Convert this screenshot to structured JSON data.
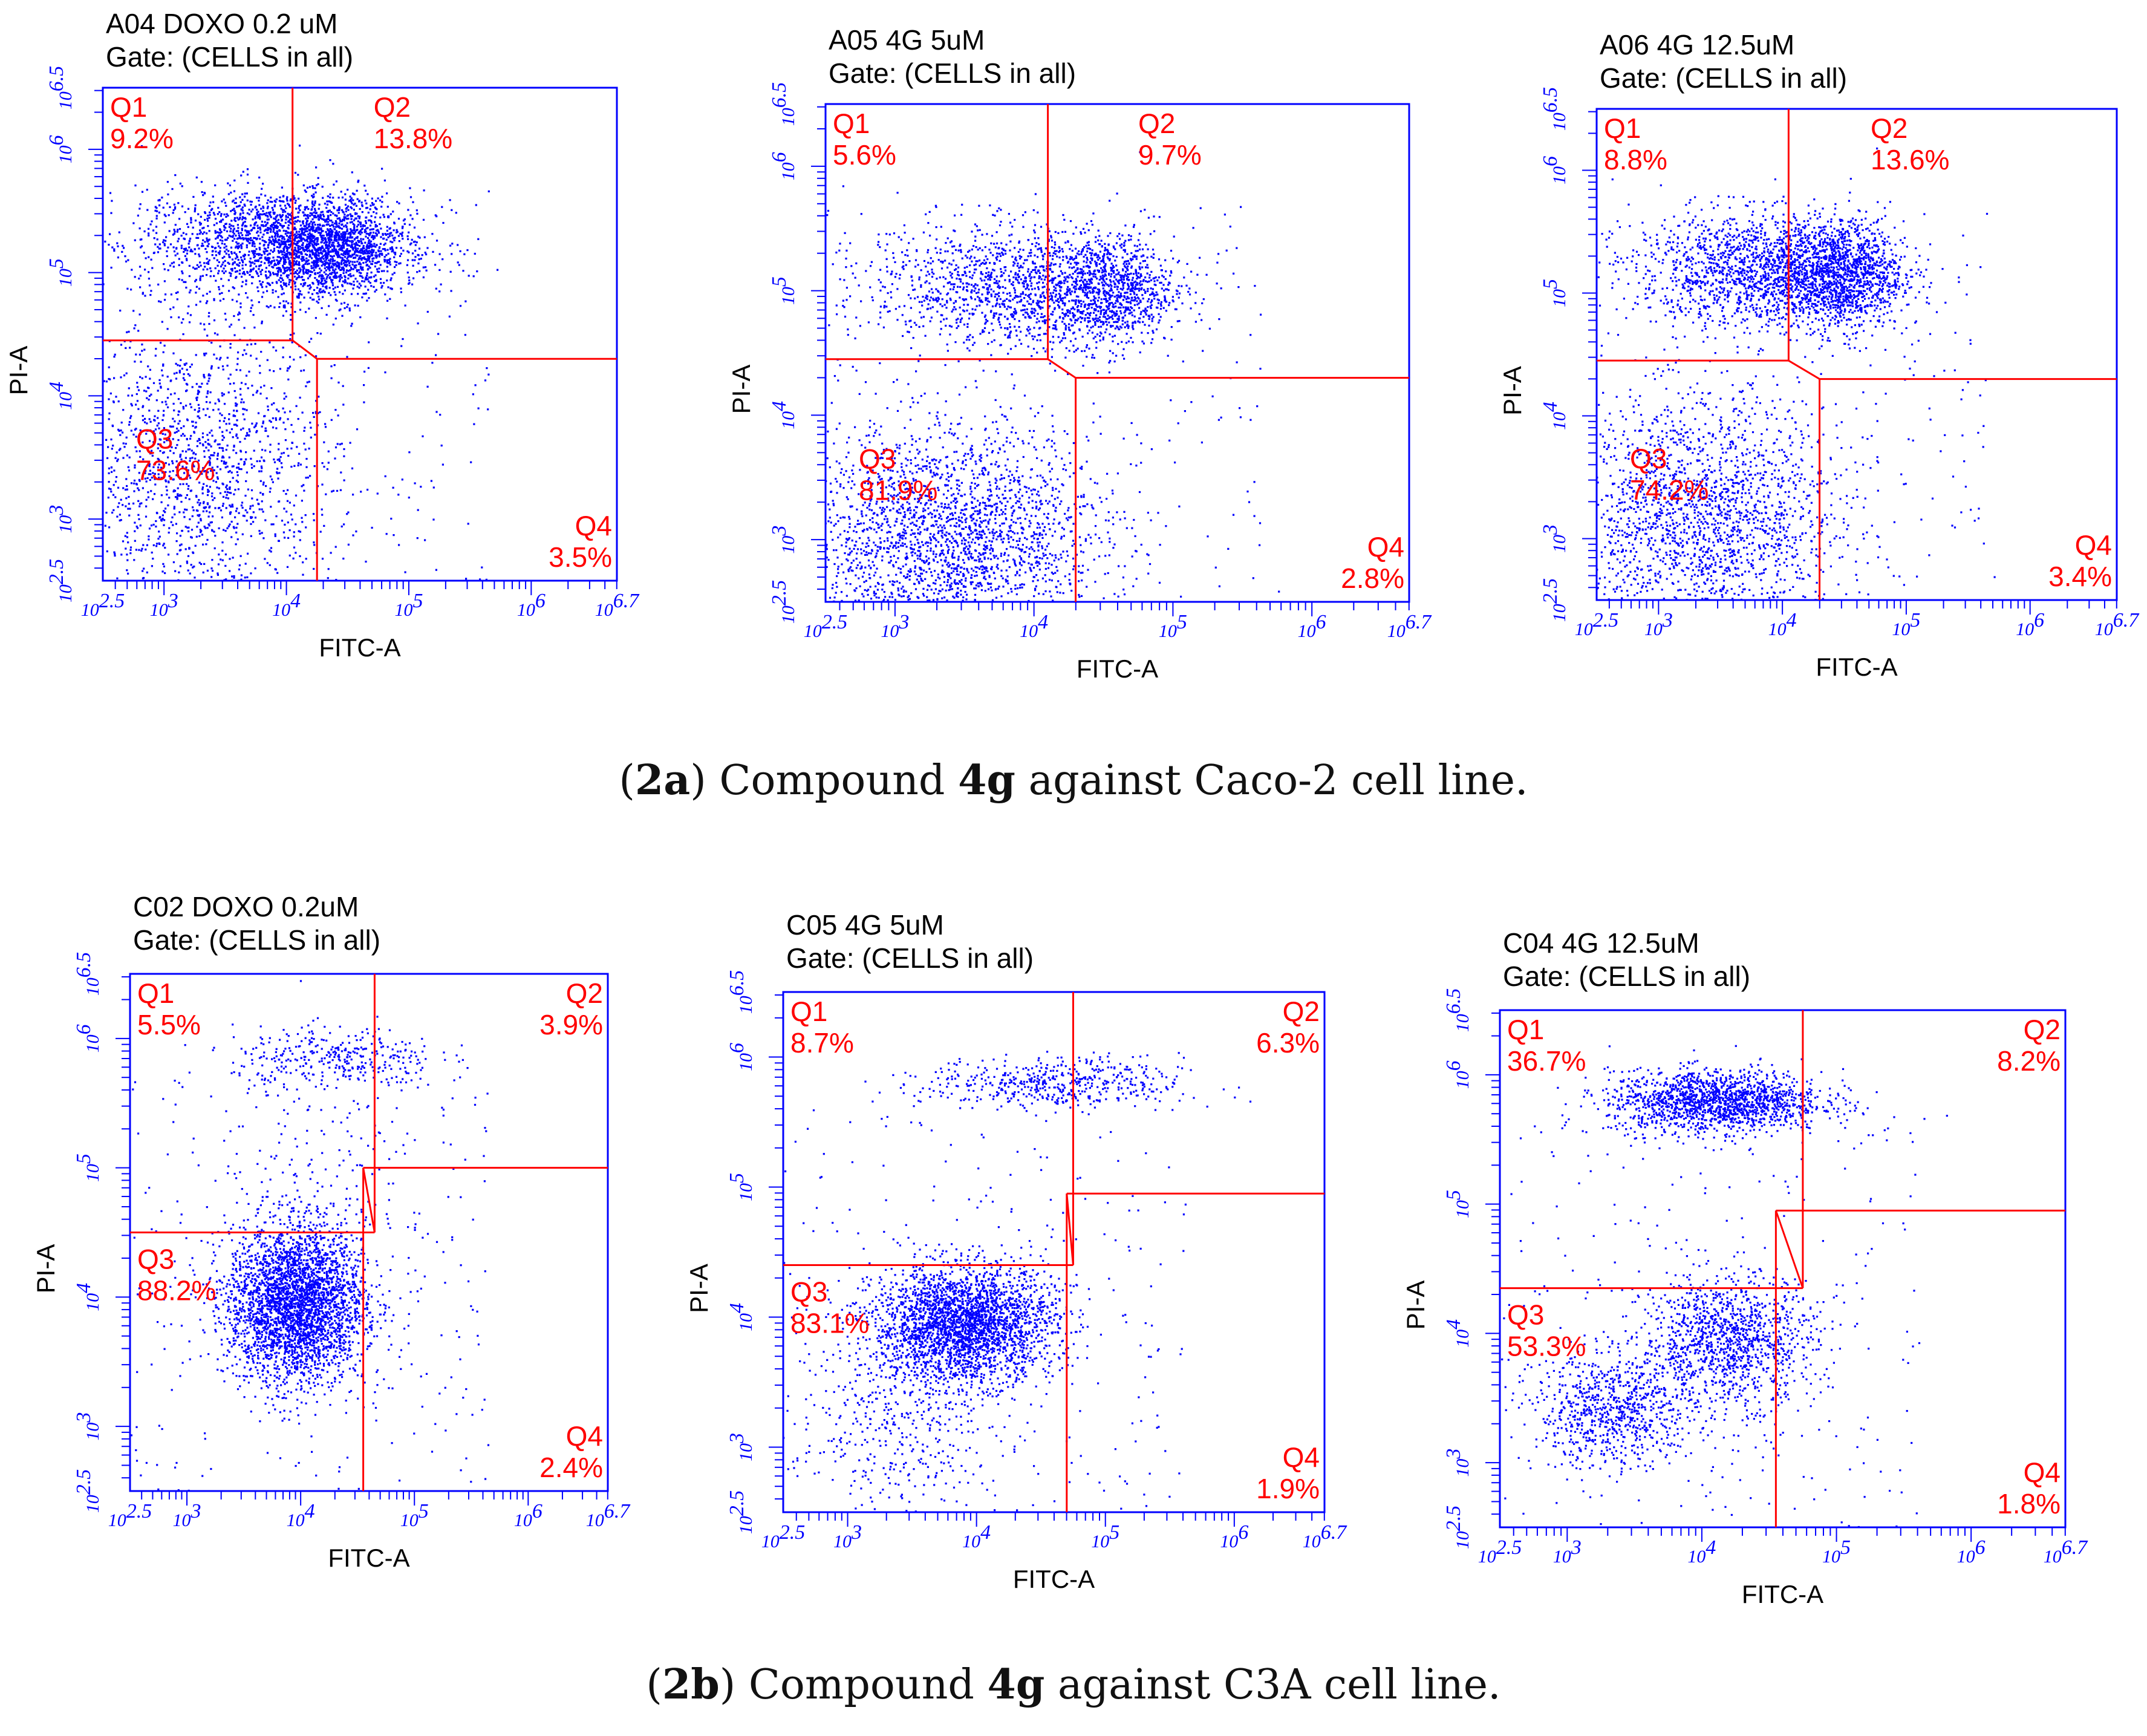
{
  "chart_data": [
    {
      "type": "scatter",
      "title": "A04 DOXO 0.2 uM",
      "gate": "Gate: (CELLS in all)",
      "xlabel": "FITC-A",
      "ylabel": "PI-A",
      "xscale": "log10",
      "yscale": "log10",
      "xlim": [
        2.5,
        6.7
      ],
      "ylim": [
        2.5,
        6.5
      ],
      "xticks": [
        "10^2.5",
        "10^3",
        "10^4",
        "10^5",
        "10^6",
        "10^6.7"
      ],
      "yticks": [
        "10^2.5",
        "10^3",
        "10^4",
        "10^5",
        "10^6",
        "10^6.5"
      ],
      "gate_lines": {
        "q1q3_y": 4.45,
        "q2q4_y": 4.3,
        "q1q2_x": 4.05,
        "q3q4_x": 4.25
      },
      "quadrants": [
        {
          "name": "Q1",
          "value": "9.2%"
        },
        {
          "name": "Q2",
          "value": "13.8%"
        },
        {
          "name": "Q3",
          "value": "73.6%"
        },
        {
          "name": "Q4",
          "value": "3.5%"
        }
      ],
      "clusters": [
        {
          "cx": 3.9,
          "cy": 5.25,
          "sx": 0.55,
          "sy": 0.22,
          "n": 1700
        },
        {
          "cx": 4.35,
          "cy": 5.2,
          "sx": 0.28,
          "sy": 0.2,
          "n": 1300
        },
        {
          "cx": 3.3,
          "cy": 3.4,
          "sx": 0.55,
          "sy": 0.6,
          "n": 1500
        }
      ]
    },
    {
      "type": "scatter",
      "title": "A05 4G 5uM",
      "gate": "Gate: (CELLS in all)",
      "xlabel": "FITC-A",
      "ylabel": "PI-A",
      "xscale": "log10",
      "yscale": "log10",
      "xlim": [
        2.5,
        6.7
      ],
      "ylim": [
        2.5,
        6.5
      ],
      "xticks": [
        "10^2.5",
        "10^3",
        "10^4",
        "10^5",
        "10^6",
        "10^6.7"
      ],
      "yticks": [
        "10^2.5",
        "10^3",
        "10^4",
        "10^5",
        "10^6",
        "10^6.5"
      ],
      "gate_lines": {
        "q1q3_y": 4.45,
        "q2q4_y": 4.3,
        "q1q2_x": 4.1,
        "q3q4_x": 4.3
      },
      "quadrants": [
        {
          "name": "Q1",
          "value": "5.6%"
        },
        {
          "name": "Q2",
          "value": "9.7%"
        },
        {
          "name": "Q3",
          "value": "81.9%"
        },
        {
          "name": "Q4",
          "value": "2.8%"
        }
      ],
      "clusters": [
        {
          "cx": 3.8,
          "cy": 5.05,
          "sx": 0.5,
          "sy": 0.25,
          "n": 1200
        },
        {
          "cx": 4.5,
          "cy": 5.0,
          "sx": 0.25,
          "sy": 0.22,
          "n": 1000
        },
        {
          "cx": 3.4,
          "cy": 3.0,
          "sx": 0.55,
          "sy": 0.45,
          "n": 2400
        }
      ]
    },
    {
      "type": "scatter",
      "title": "A06 4G 12.5uM",
      "gate": "Gate: (CELLS in all)",
      "xlabel": "FITC-A",
      "ylabel": "PI-A",
      "xscale": "log10",
      "yscale": "log10",
      "xlim": [
        2.5,
        6.7
      ],
      "ylim": [
        2.5,
        6.5
      ],
      "xticks": [
        "10^2.5",
        "10^3",
        "10^4",
        "10^5",
        "10^6",
        "10^6.7"
      ],
      "yticks": [
        "10^2.5",
        "10^3",
        "10^4",
        "10^5",
        "10^6",
        "10^6.5"
      ],
      "gate_lines": {
        "q1q3_y": 4.45,
        "q2q4_y": 4.3,
        "q1q2_x": 4.05,
        "q3q4_x": 4.3
      },
      "quadrants": [
        {
          "name": "Q1",
          "value": "8.8%"
        },
        {
          "name": "Q2",
          "value": "13.6%"
        },
        {
          "name": "Q3",
          "value": "74.2%"
        },
        {
          "name": "Q4",
          "value": "3.4%"
        }
      ],
      "clusters": [
        {
          "cx": 3.8,
          "cy": 5.2,
          "sx": 0.5,
          "sy": 0.23,
          "n": 1500
        },
        {
          "cx": 4.45,
          "cy": 5.15,
          "sx": 0.26,
          "sy": 0.22,
          "n": 1300
        },
        {
          "cx": 3.35,
          "cy": 3.15,
          "sx": 0.55,
          "sy": 0.5,
          "n": 2000
        }
      ]
    },
    {
      "type": "scatter",
      "title": "C02 DOXO 0.2uM",
      "gate": "Gate: (CELLS in all)",
      "xlabel": "FITC-A",
      "ylabel": "PI-A",
      "xscale": "log10",
      "yscale": "log10",
      "xlim": [
        2.5,
        6.7
      ],
      "ylim": [
        2.5,
        6.5
      ],
      "xticks": [
        "10^2.5",
        "10^3",
        "10^4",
        "10^5",
        "10^6",
        "10^6.7"
      ],
      "yticks": [
        "10^2.5",
        "10^3",
        "10^4",
        "10^5",
        "10^6",
        "10^6.5"
      ],
      "gate_lines": {
        "q1q3_y": 4.5,
        "q2q4_y": 5.0,
        "q1q2_x": 4.65,
        "q3q4_x": 4.55
      },
      "quadrants": [
        {
          "name": "Q1",
          "value": "5.5%"
        },
        {
          "name": "Q2",
          "value": "3.9%"
        },
        {
          "name": "Q3",
          "value": "88.2%"
        },
        {
          "name": "Q4",
          "value": "2.4%"
        }
      ],
      "clusters": [
        {
          "cx": 3.95,
          "cy": 3.95,
          "sx": 0.3,
          "sy": 0.3,
          "n": 3200
        },
        {
          "cx": 4.3,
          "cy": 5.85,
          "sx": 0.45,
          "sy": 0.12,
          "n": 350
        },
        {
          "cx": 4.2,
          "cy": 4.8,
          "sx": 0.5,
          "sy": 0.5,
          "n": 150
        }
      ]
    },
    {
      "type": "scatter",
      "title": "C05 4G 5uM",
      "gate": "Gate: (CELLS in all)",
      "xlabel": "FITC-A",
      "ylabel": "PI-A",
      "xscale": "log10",
      "yscale": "log10",
      "xlim": [
        2.5,
        6.7
      ],
      "ylim": [
        2.5,
        6.5
      ],
      "xticks": [
        "10^2.5",
        "10^3",
        "10^4",
        "10^5",
        "10^6",
        "10^6.7"
      ],
      "yticks": [
        "10^2.5",
        "10^3",
        "10^4",
        "10^5",
        "10^6",
        "10^6.5"
      ],
      "gate_lines": {
        "q1q3_y": 4.4,
        "q2q4_y": 4.95,
        "q1q2_x": 4.75,
        "q3q4_x": 4.7
      },
      "quadrants": [
        {
          "name": "Q1",
          "value": "8.7%"
        },
        {
          "name": "Q2",
          "value": "6.3%"
        },
        {
          "name": "Q3",
          "value": "83.1%"
        },
        {
          "name": "Q4",
          "value": "1.9%"
        }
      ],
      "clusters": [
        {
          "cx": 3.9,
          "cy": 3.95,
          "sx": 0.35,
          "sy": 0.22,
          "n": 2800
        },
        {
          "cx": 3.4,
          "cy": 3.2,
          "sx": 0.4,
          "sy": 0.35,
          "n": 400
        },
        {
          "cx": 4.6,
          "cy": 5.8,
          "sx": 0.5,
          "sy": 0.1,
          "n": 500
        }
      ]
    },
    {
      "type": "scatter",
      "title": "C04 4G 12.5uM",
      "gate": "Gate: (CELLS in all)",
      "xlabel": "FITC-A",
      "ylabel": "PI-A",
      "xscale": "log10",
      "yscale": "log10",
      "xlim": [
        2.5,
        6.7
      ],
      "ylim": [
        2.5,
        6.5
      ],
      "xticks": [
        "10^2.5",
        "10^3",
        "10^4",
        "10^5",
        "10^6",
        "10^6.7"
      ],
      "yticks": [
        "10^2.5",
        "10^3",
        "10^4",
        "10^5",
        "10^6",
        "10^6.5"
      ],
      "gate_lines": {
        "q1q3_y": 4.35,
        "q2q4_y": 4.95,
        "q1q2_x": 4.75,
        "q3q4_x": 4.55
      },
      "quadrants": [
        {
          "name": "Q1",
          "value": "36.7%"
        },
        {
          "name": "Q2",
          "value": "8.2%"
        },
        {
          "name": "Q3",
          "value": "53.3%"
        },
        {
          "name": "Q4",
          "value": "1.8%"
        }
      ],
      "clusters": [
        {
          "cx": 4.1,
          "cy": 5.8,
          "sx": 0.4,
          "sy": 0.12,
          "n": 1600
        },
        {
          "cx": 4.2,
          "cy": 3.95,
          "sx": 0.32,
          "sy": 0.25,
          "n": 1200
        },
        {
          "cx": 3.35,
          "cy": 3.4,
          "sx": 0.3,
          "sy": 0.22,
          "n": 800
        }
      ]
    }
  ],
  "captions": {
    "a": {
      "open": "(",
      "label": "2a",
      "mid": ") Compound ",
      "bold": "4g",
      "rest": " against Caco-2 cell line."
    },
    "b": {
      "open": "(",
      "label": "2b",
      "mid": ") Compound ",
      "bold": "4g",
      "rest": " against C3A cell line."
    }
  },
  "colors": {
    "points": "#0000ff",
    "axes": "#0000ff",
    "gates": "#ff0000",
    "labels": "#ff0000",
    "text": "#000000"
  }
}
